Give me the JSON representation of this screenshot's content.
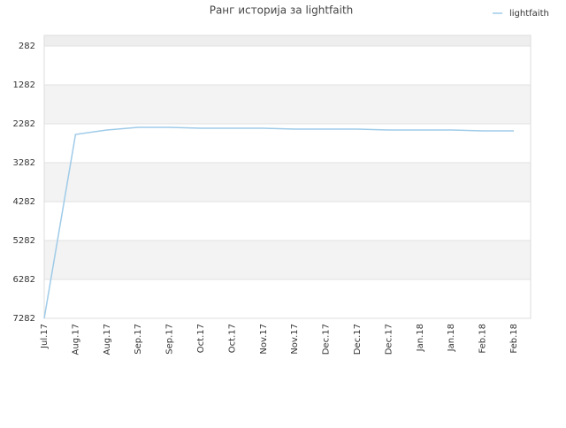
{
  "chart_data": {
    "type": "line",
    "title": "Ранг историја за lightfaith",
    "categories": [
      "Jul.17",
      "Aug.17",
      "Aug.17",
      "Sep.17",
      "Sep.17",
      "Oct.17",
      "Oct.17",
      "Nov.17",
      "Nov.17",
      "Dec.17",
      "Dec.17",
      "Dec.17",
      "Jan.18",
      "Jan.18",
      "Feb.18",
      "Feb.18"
    ],
    "series": [
      {
        "name": "lightfaith",
        "color": "#9fcbe8",
        "values": [
          7282,
          2555,
          2441,
          2373,
          2373,
          2395,
          2395,
          2395,
          2418,
          2418,
          2418,
          2441,
          2441,
          2441,
          2464,
          2464
        ]
      }
    ],
    "ylim": [
      7282,
      9
    ],
    "yticks": [
      282,
      1282,
      2282,
      3282,
      4282,
      5282,
      6282,
      7282
    ],
    "grid": true,
    "legend": "top-right"
  }
}
